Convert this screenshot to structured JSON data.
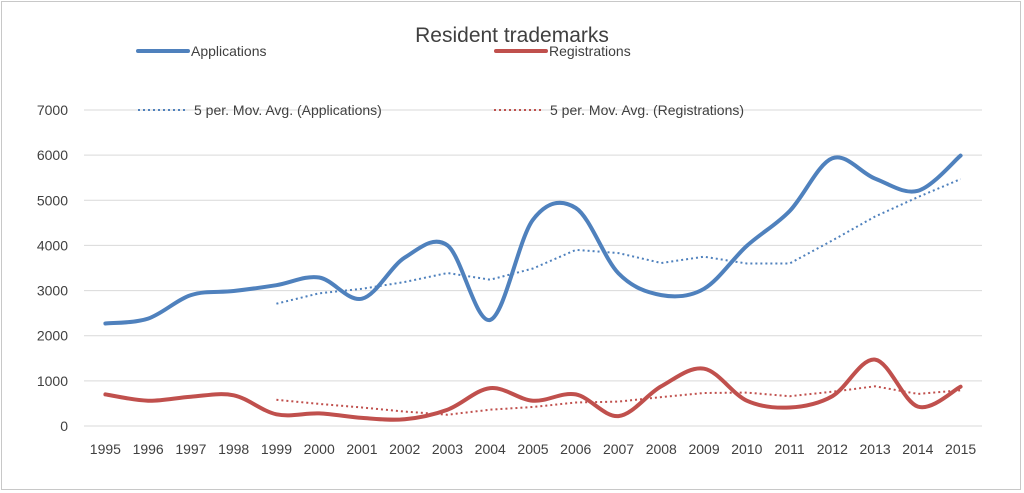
{
  "chart_data": {
    "type": "line",
    "title": "Resident trademarks",
    "xlabel": "",
    "ylabel": "",
    "ylim": [
      0,
      7000
    ],
    "yticks": [
      0,
      1000,
      2000,
      3000,
      4000,
      5000,
      6000,
      7000
    ],
    "yticks_labels": [
      "0",
      "1000",
      "2000",
      "3000",
      "4000",
      "5000",
      "6000",
      "7000"
    ],
    "categories": [
      "1995",
      "1996",
      "1997",
      "1998",
      "1999",
      "2000",
      "2001",
      "2002",
      "2003",
      "2004",
      "2005",
      "2006",
      "2007",
      "2008",
      "2009",
      "2010",
      "2011",
      "2012",
      "2013",
      "2014",
      "2015"
    ],
    "series": [
      {
        "name": "Applications",
        "color": "#4f81bd",
        "style": "solid",
        "values": [
          2270,
          2380,
          2900,
          2990,
          3120,
          3290,
          2820,
          3730,
          4000,
          2350,
          4570,
          4830,
          3380,
          2900,
          3040,
          3990,
          4760,
          5930,
          5480,
          5210,
          5990
        ]
      },
      {
        "name": "Registrations",
        "color": "#c0504d",
        "style": "solid",
        "values": [
          700,
          560,
          650,
          680,
          260,
          280,
          180,
          150,
          360,
          840,
          560,
          700,
          220,
          880,
          1270,
          560,
          410,
          660,
          1470,
          430,
          870
        ]
      },
      {
        "name": "5 per. Mov. Avg. (Applications)",
        "color": "#4f81bd",
        "style": "dotted",
        "values": [
          null,
          null,
          null,
          null,
          2710,
          2940,
          3040,
          3190,
          3390,
          3240,
          3490,
          3900,
          3830,
          3610,
          3750,
          3600,
          3600,
          4110,
          4640,
          5070,
          5470
        ]
      },
      {
        "name": "5 per. Mov. Avg. (Registrations)",
        "color": "#c0504d",
        "style": "dotted",
        "values": [
          null,
          null,
          null,
          null,
          580,
          490,
          410,
          320,
          250,
          360,
          420,
          520,
          540,
          640,
          730,
          740,
          660,
          760,
          880,
          710,
          790
        ]
      }
    ],
    "legend_position": "top",
    "grid": true
  }
}
